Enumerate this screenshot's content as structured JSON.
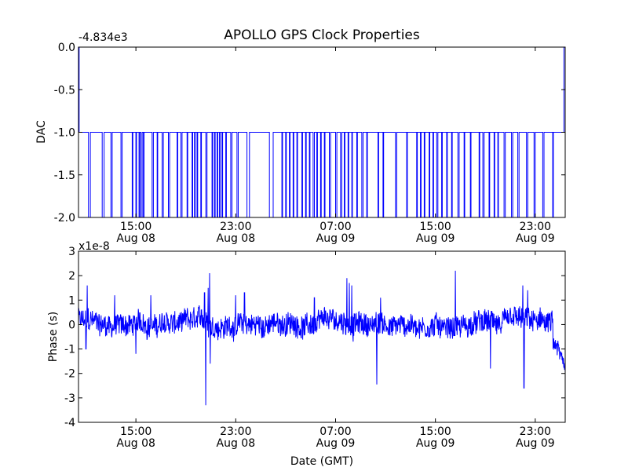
{
  "figure": {
    "title": "APOLLO GPS Clock Properties",
    "xlabel": "Date (GMT)"
  },
  "chart_data": [
    {
      "type": "line",
      "title": "APOLLO GPS Clock Properties",
      "ylabel": "DAC",
      "y_offset_label": "-4.834e3",
      "ylim": [
        -2.0,
        0.0
      ],
      "yticks": [
        0.0,
        -0.5,
        -1.0,
        -1.5,
        -2.0
      ],
      "ytick_labels": [
        "0.0",
        "-0.5",
        "-1.0",
        "-1.5",
        "-2.0"
      ],
      "xlim_hours": [
        10.4,
        49.4
      ],
      "xticks": [
        {
          "hour": 15,
          "label": [
            "15:00",
            "Aug 08"
          ]
        },
        {
          "hour": 23,
          "label": [
            "23:00",
            "Aug 08"
          ]
        },
        {
          "hour": 31,
          "label": [
            "07:00",
            "Aug 09"
          ]
        },
        {
          "hour": 39,
          "label": [
            "15:00",
            "Aug 09"
          ]
        },
        {
          "hour": 47,
          "label": [
            "23:00",
            "Aug 09"
          ]
        }
      ],
      "series": [
        {
          "color": "#0000ff",
          "baseline": -1.0,
          "drop_to": -2.0,
          "notes": "DAC mostly at -1 with frequent drops to -2; rises to 0 at the start and end",
          "drops": [
            [
              11.2,
              11.35
            ],
            [
              12.3,
              12.45
            ],
            [
              13.0,
              13.1
            ],
            [
              13.8,
              13.9
            ],
            [
              14.7,
              14.75
            ],
            [
              15.0,
              15.05
            ],
            [
              15.25,
              15.3
            ],
            [
              15.4,
              15.5
            ],
            [
              15.6,
              15.65
            ],
            [
              16.3,
              16.4
            ],
            [
              16.7,
              16.75
            ],
            [
              17.1,
              17.2
            ],
            [
              17.6,
              17.7
            ],
            [
              18.3,
              18.35
            ],
            [
              18.6,
              18.7
            ],
            [
              19.1,
              19.15
            ],
            [
              19.5,
              19.55
            ],
            [
              19.7,
              19.75
            ],
            [
              19.9,
              19.95
            ],
            [
              20.2,
              20.25
            ],
            [
              20.6,
              20.7
            ],
            [
              21.1,
              21.15
            ],
            [
              21.3,
              21.35
            ],
            [
              21.5,
              21.55
            ],
            [
              21.7,
              21.75
            ],
            [
              21.9,
              21.95
            ],
            [
              22.2,
              22.25
            ],
            [
              22.6,
              22.7
            ],
            [
              23.1,
              23.2
            ],
            [
              23.9,
              24.1
            ],
            [
              25.7,
              26.0
            ],
            [
              26.7,
              26.75
            ],
            [
              27.0,
              27.05
            ],
            [
              27.3,
              27.35
            ],
            [
              27.6,
              27.65
            ],
            [
              27.9,
              27.95
            ],
            [
              28.3,
              28.35
            ],
            [
              28.6,
              28.65
            ],
            [
              28.9,
              28.95
            ],
            [
              29.2,
              29.3
            ],
            [
              29.5,
              29.55
            ],
            [
              29.8,
              29.85
            ],
            [
              30.1,
              30.15
            ],
            [
              30.5,
              30.6
            ],
            [
              31.0,
              31.1
            ],
            [
              31.4,
              31.5
            ],
            [
              31.7,
              31.75
            ],
            [
              32.0,
              32.05
            ],
            [
              32.3,
              32.35
            ],
            [
              32.7,
              32.75
            ],
            [
              33.1,
              33.2
            ],
            [
              33.5,
              33.55
            ],
            [
              34.4,
              34.45
            ],
            [
              34.8,
              34.85
            ],
            [
              35.8,
              35.9
            ],
            [
              36.7,
              36.75
            ],
            [
              37.5,
              37.55
            ],
            [
              37.8,
              37.85
            ],
            [
              38.1,
              38.15
            ],
            [
              38.5,
              38.55
            ],
            [
              38.8,
              38.85
            ],
            [
              39.1,
              39.2
            ],
            [
              39.5,
              39.55
            ],
            [
              39.9,
              39.95
            ],
            [
              40.3,
              40.35
            ],
            [
              40.8,
              40.9
            ],
            [
              41.3,
              41.35
            ],
            [
              41.8,
              41.85
            ],
            [
              42.5,
              42.55
            ],
            [
              42.8,
              42.9
            ],
            [
              43.3,
              43.35
            ],
            [
              43.7,
              43.75
            ],
            [
              44.0,
              44.05
            ],
            [
              44.5,
              44.6
            ],
            [
              45.1,
              45.2
            ],
            [
              45.6,
              45.7
            ],
            [
              46.3,
              46.4
            ],
            [
              46.9,
              47.0
            ],
            [
              47.6,
              47.7
            ],
            [
              48.4,
              48.45
            ]
          ],
          "rise_start": [
            10.4,
            10.45
          ],
          "rise_end": [
            49.3,
            49.4
          ]
        }
      ]
    },
    {
      "type": "line",
      "ylabel": "Phase (s)",
      "xlabel": "Date (GMT)",
      "y_offset_label": "x1e-8",
      "ylim": [
        -4,
        3
      ],
      "yticks": [
        3,
        2,
        1,
        0,
        -1,
        -2,
        -3,
        -4
      ],
      "ytick_labels": [
        "3",
        "2",
        "1",
        "0",
        "-1",
        "-2",
        "-3",
        "-4"
      ],
      "xlim_hours": [
        10.4,
        49.4
      ],
      "xticks": [
        {
          "hour": 15,
          "label": [
            "15:00",
            "Aug 08"
          ]
        },
        {
          "hour": 23,
          "label": [
            "23:00",
            "Aug 08"
          ]
        },
        {
          "hour": 31,
          "label": [
            "07:00",
            "Aug 09"
          ]
        },
        {
          "hour": 39,
          "label": [
            "15:00",
            "Aug 09"
          ]
        },
        {
          "hour": 47,
          "label": [
            "23:00",
            "Aug 09"
          ]
        }
      ],
      "series": [
        {
          "color": "#0000ff",
          "noise_amplitude": 0.45,
          "spikes": [
            {
              "hour": 20.5,
              "value": 1.3
            },
            {
              "hour": 20.8,
              "value": 1.5
            },
            {
              "hour": 20.9,
              "value": 2.1
            },
            {
              "hour": 20.6,
              "value": -3.3
            },
            {
              "hour": 20.95,
              "value": -1.6
            },
            {
              "hour": 23.0,
              "value": 1.2
            },
            {
              "hour": 23.7,
              "value": 1.3
            },
            {
              "hour": 29.3,
              "value": 1.1
            },
            {
              "hour": 31.9,
              "value": 1.9
            },
            {
              "hour": 32.1,
              "value": 1.7
            },
            {
              "hour": 32.3,
              "value": 1.6
            },
            {
              "hour": 32.4,
              "value": -0.7
            },
            {
              "hour": 34.3,
              "value": -2.45
            },
            {
              "hour": 34.6,
              "value": 1.1
            },
            {
              "hour": 40.6,
              "value": 2.2
            },
            {
              "hour": 43.4,
              "value": -1.8
            },
            {
              "hour": 46.1,
              "value": -2.6
            },
            {
              "hour": 46.0,
              "value": 1.6
            },
            {
              "hour": 46.4,
              "value": 1.4
            },
            {
              "hour": 13.3,
              "value": 1.2
            },
            {
              "hour": 16.2,
              "value": 1.2
            },
            {
              "hour": 15.0,
              "value": -1.2
            },
            {
              "hour": 11.0,
              "value": -1.0
            },
            {
              "hour": 11.1,
              "value": 1.6
            }
          ],
          "end_drift": {
            "start_hour": 48.4,
            "end_hour": 49.4,
            "start_value": -0.6,
            "end_value": -1.6
          }
        }
      ]
    }
  ]
}
